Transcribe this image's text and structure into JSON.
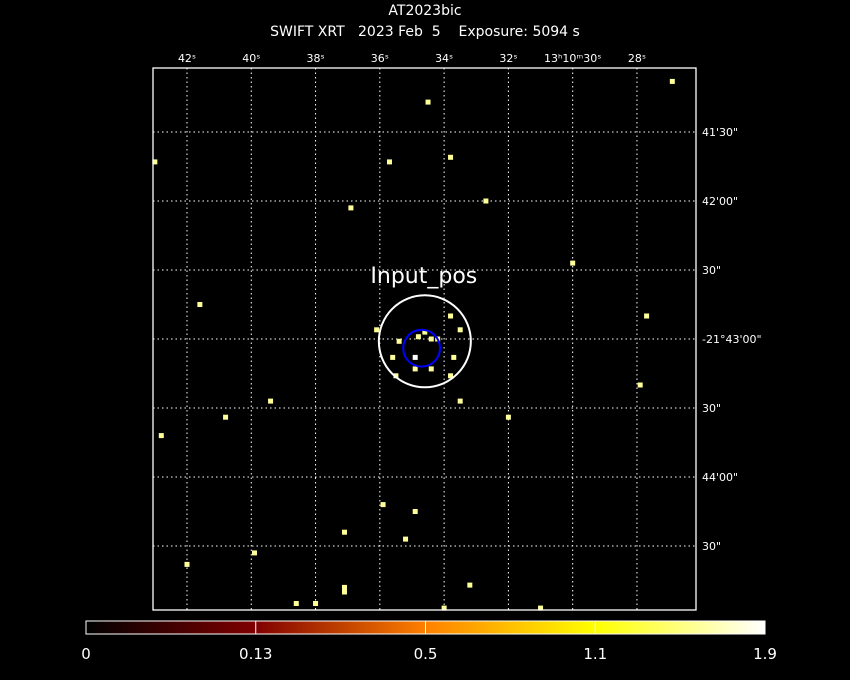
{
  "chart_data": {
    "type": "scatter",
    "title": "AT2023bic",
    "subtitle": "SWIFT XRT   2023 Feb  5    Exposure: 5094 s",
    "x_axis": {
      "coordinate": "RA",
      "ticks": [
        "13:10:42",
        "13:10:40",
        "13:10:38",
        "13:10:36",
        "13:10:34",
        "13:10:32",
        "13:10:30",
        "13:10:28"
      ],
      "tick_labels": [
        "42ˢ",
        "40ˢ",
        "38ˢ",
        "36ˢ",
        "34ˢ",
        "32ˢ",
        "13ʰ10ᵐ30ˢ",
        "28ˢ"
      ],
      "range": [
        "13:10:43.1",
        "13:10:26.2"
      ]
    },
    "y_axis": {
      "coordinate": "Dec",
      "ticks": [
        "-21:41:30",
        "-21:42:00",
        "-21:42:30",
        "-21:43:00",
        "-21:43:30",
        "-21:44:00",
        "-21:44:30"
      ],
      "tick_labels": [
        "41'30\"",
        "42'00\"",
        "30\"",
        "-21°43'00\"",
        "30\"",
        "44'00\"",
        "30\""
      ],
      "range": [
        "-21:40:55",
        "-21:45:00"
      ]
    },
    "grid": true,
    "grid_style": "dotted",
    "region_label": "Input_pos",
    "regions": [
      {
        "ra": "13:10:34.6",
        "dec": "-21:43:01",
        "radius_arcsec": 20,
        "color": "#ffffff"
      },
      {
        "ra": "13:10:34.7",
        "dec": "-21:43:04",
        "radius_arcsec": 8,
        "color": "#0000ff"
      }
    ],
    "events": [
      {
        "ra": "13:10:26.9",
        "dec": "-21:41:08",
        "value": 1
      },
      {
        "ra": "13:10:34.5",
        "dec": "-21:41:17",
        "value": 1
      },
      {
        "ra": "13:10:43.0",
        "dec": "-21:41:43",
        "value": 1
      },
      {
        "ra": "13:10:35.7",
        "dec": "-21:41:43",
        "value": 1
      },
      {
        "ra": "13:10:33.8",
        "dec": "-21:41:41",
        "value": 1
      },
      {
        "ra": "13:10:32.7",
        "dec": "-21:42:00",
        "value": 1
      },
      {
        "ra": "13:10:36.9",
        "dec": "-21:42:03",
        "value": 1
      },
      {
        "ra": "13:10:30.0",
        "dec": "-21:42:27",
        "value": 1
      },
      {
        "ra": "13:10:41.6",
        "dec": "-21:42:45",
        "value": 1
      },
      {
        "ra": "13:10:27.7",
        "dec": "-21:42:50",
        "value": 1
      },
      {
        "ra": "13:10:33.8",
        "dec": "-21:42:50",
        "value": 1
      },
      {
        "ra": "13:10:36.1",
        "dec": "-21:42:56",
        "value": 1
      },
      {
        "ra": "13:10:33.5",
        "dec": "-21:42:56",
        "value": 1
      },
      {
        "ra": "13:10:35.4",
        "dec": "-21:43:01",
        "value": 1
      },
      {
        "ra": "13:10:34.8",
        "dec": "-21:42:59",
        "value": 1
      },
      {
        "ra": "13:10:34.6",
        "dec": "-21:42:57",
        "value": 1
      },
      {
        "ra": "13:10:34.4",
        "dec": "-21:43:00",
        "value": 1
      },
      {
        "ra": "13:10:34.2",
        "dec": "-21:43:00",
        "value": 1
      },
      {
        "ra": "13:10:35.6",
        "dec": "-21:43:08",
        "value": 1
      },
      {
        "ra": "13:10:34.9",
        "dec": "-21:43:08",
        "value": 2
      },
      {
        "ra": "13:10:33.7",
        "dec": "-21:43:08",
        "value": 1
      },
      {
        "ra": "13:10:35.5",
        "dec": "-21:43:16",
        "value": 1
      },
      {
        "ra": "13:10:34.9",
        "dec": "-21:43:13",
        "value": 1
      },
      {
        "ra": "13:10:34.4",
        "dec": "-21:43:13",
        "value": 1
      },
      {
        "ra": "13:10:33.8",
        "dec": "-21:43:16",
        "value": 1
      },
      {
        "ra": "13:10:27.9",
        "dec": "-21:43:20",
        "value": 1
      },
      {
        "ra": "13:10:39.4",
        "dec": "-21:43:27",
        "value": 1
      },
      {
        "ra": "13:10:33.5",
        "dec": "-21:43:27",
        "value": 1
      },
      {
        "ra": "13:10:40.8",
        "dec": "-21:43:34",
        "value": 1
      },
      {
        "ra": "13:10:32.0",
        "dec": "-21:43:34",
        "value": 1
      },
      {
        "ra": "13:10:42.8",
        "dec": "-21:43:42",
        "value": 1
      },
      {
        "ra": "13:10:35.9",
        "dec": "-21:44:12",
        "value": 1
      },
      {
        "ra": "13:10:34.9",
        "dec": "-21:44:15",
        "value": 1
      },
      {
        "ra": "13:10:37.1",
        "dec": "-21:44:24",
        "value": 1
      },
      {
        "ra": "13:10:35.2",
        "dec": "-21:44:27",
        "value": 1
      },
      {
        "ra": "13:10:39.9",
        "dec": "-21:44:33",
        "value": 1
      },
      {
        "ra": "13:10:42.0",
        "dec": "-21:44:38",
        "value": 1
      },
      {
        "ra": "13:10:37.1",
        "dec": "-21:44:48",
        "value": 1
      },
      {
        "ra": "13:10:37.1",
        "dec": "-21:44:50",
        "value": 1
      },
      {
        "ra": "13:10:33.2",
        "dec": "-21:44:47",
        "value": 1
      },
      {
        "ra": "13:10:38.6",
        "dec": "-21:44:55",
        "value": 1
      },
      {
        "ra": "13:10:38.0",
        "dec": "-21:44:55",
        "value": 1
      },
      {
        "ra": "13:10:34.0",
        "dec": "-21:44:57",
        "value": 1
      },
      {
        "ra": "13:10:31.0",
        "dec": "-21:44:57",
        "value": 1
      }
    ],
    "colors": {
      "event": "#ffff99",
      "event_bright": "#ffffff"
    },
    "colorbar": {
      "labels": [
        "0",
        "0.13",
        "0.5",
        "1.1",
        "1.9"
      ],
      "colormap": [
        "#000000",
        "#800000",
        "#ff8000",
        "#ffff00",
        "#ffffff"
      ]
    }
  }
}
